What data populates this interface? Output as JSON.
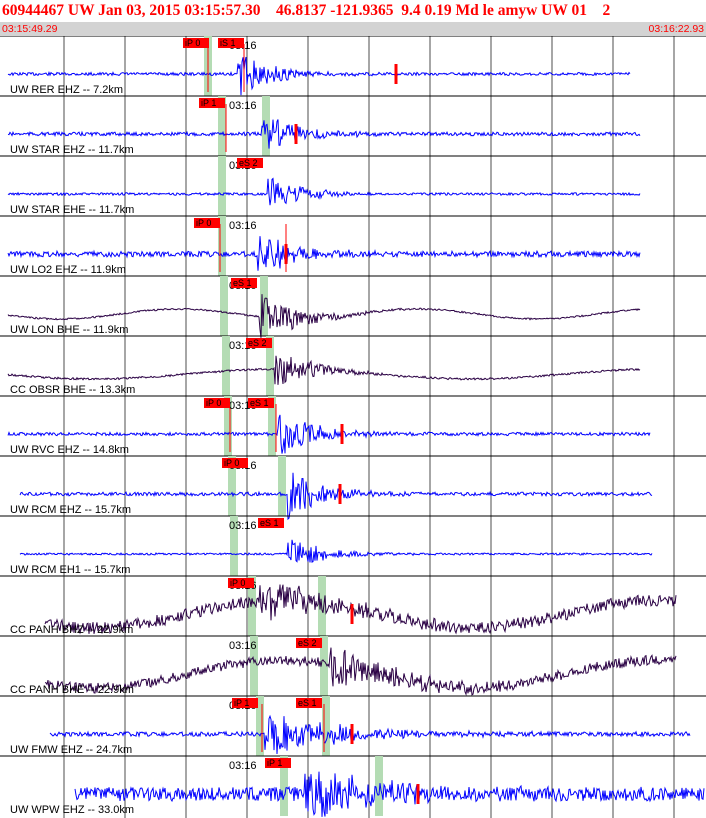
{
  "header": {
    "title": "60944467 UW Jan 03, 2015 03:15:57.30    46.8137 -121.9365  9.4 0.19 Md le amyw UW 01    2",
    "start_time": "03:15:49.29",
    "end_time": "03:16:22.93"
  },
  "colors": {
    "title_red": "#ff0000",
    "header_bar": "#d3d3d3",
    "trace_blue": "#0000ff",
    "trace_dark": "#2a0044",
    "pick_red": "#ff0000",
    "pick_green": "#b4dcb4",
    "gridline": "#000000"
  },
  "clock_label": "03:16",
  "traces": [
    {
      "label": "UW RER EHZ -- 7.2km",
      "color": "blue",
      "picks": [
        "iP 0",
        "iS 1"
      ]
    },
    {
      "label": "UW STAR EHZ -- 11.7km",
      "color": "blue",
      "picks": [
        "iP 1"
      ]
    },
    {
      "label": "UW STAR EHE -- 11.7km",
      "color": "blue",
      "picks": [
        "eS 2"
      ]
    },
    {
      "label": "UW LO2 EHZ -- 11.9km",
      "color": "blue",
      "picks": [
        "iP 0"
      ]
    },
    {
      "label": "UW LON BHE -- 11.9km",
      "color": "dark",
      "picks": [
        "eS 1"
      ]
    },
    {
      "label": "CC OBSR BHE -- 13.3km",
      "color": "dark",
      "picks": [
        "eS 2"
      ]
    },
    {
      "label": "UW RVC EHZ -- 14.8km",
      "color": "blue",
      "picks": [
        "iP 0",
        "eS 1"
      ]
    },
    {
      "label": "UW RCM EHZ -- 15.7km",
      "color": "blue",
      "picks": [
        "iP 0"
      ]
    },
    {
      "label": "UW RCM EH1 -- 15.7km",
      "color": "blue",
      "picks": [
        "eS 1"
      ]
    },
    {
      "label": "CC PANH BHZ -- 22.9km",
      "color": "dark",
      "picks": [
        "iP 0"
      ]
    },
    {
      "label": "CC PANH BHE -- 22.9km",
      "color": "dark",
      "picks": [
        "eS 2"
      ]
    },
    {
      "label": "UW FMW EHZ -- 24.7km",
      "color": "blue",
      "picks": [
        "iP 1",
        "eS 1"
      ]
    },
    {
      "label": "UW WPW EHZ -- 33.0km",
      "color": "blue",
      "picks": [
        "iP 1"
      ]
    }
  ]
}
